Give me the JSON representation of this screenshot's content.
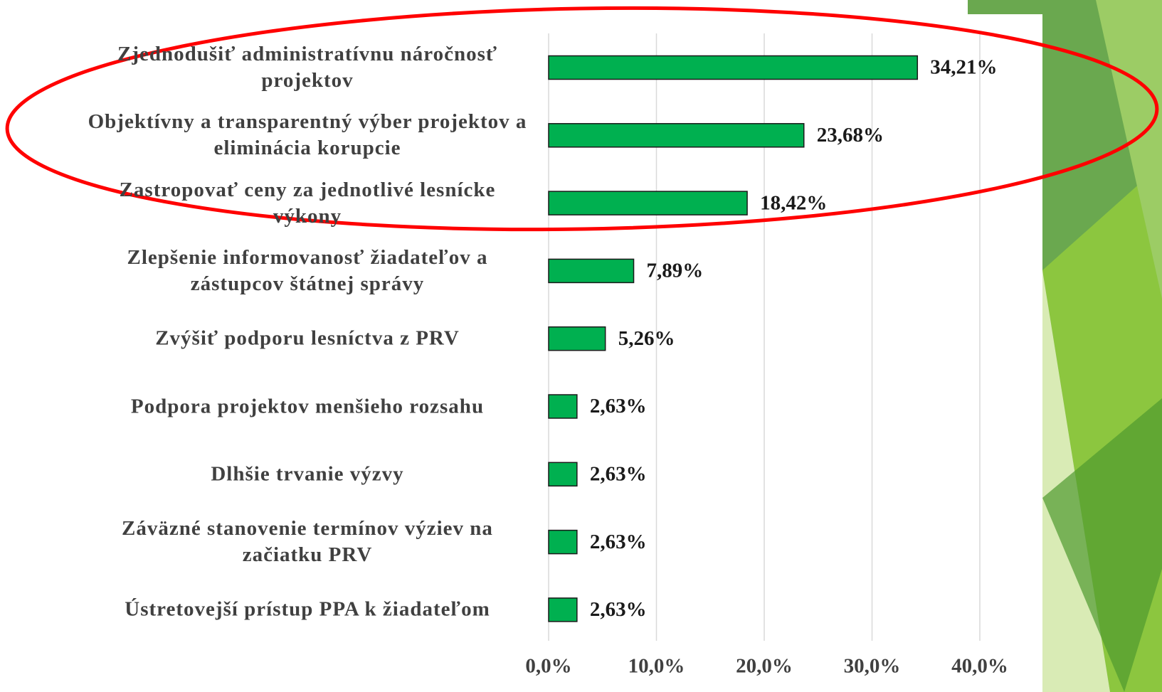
{
  "chart_data": {
    "type": "bar",
    "orientation": "horizontal",
    "categories": [
      "Zjednodušiť administratívnu náročnosť projektov",
      "Objektívny a transparentný výber projektov a eliminácia korupcie",
      "Zastropovať ceny za jednotlivé lesnícke výkony",
      "Zlepšenie informovanosť žiadateľov a zástupcov štátnej správy",
      "Zvýšiť podporu lesníctva z PRV",
      "Podpora projektov menšieho rozsahu",
      "Dlhšie trvanie výzvy",
      "Záväzné stanovenie termínov výziev na začiatku PRV",
      "Ústretovejší prístup PPA k žiadateľom"
    ],
    "values": [
      34.21,
      23.68,
      18.42,
      7.89,
      5.26,
      2.63,
      2.63,
      2.63,
      2.63
    ],
    "value_labels": [
      "34,21%",
      "23,68%",
      "18,42%",
      "7,89%",
      "5,26%",
      "2,63%",
      "2,63%",
      "2,63%",
      "2,63%"
    ],
    "color": "#00b050",
    "xlim": [
      0,
      40
    ],
    "xticks": [
      {
        "value": 0,
        "label": "0,0%"
      },
      {
        "value": 10,
        "label": "10,0%"
      },
      {
        "value": 20,
        "label": "20,0%"
      },
      {
        "value": 30,
        "label": "30,0%"
      },
      {
        "value": 40,
        "label": "40,0%"
      }
    ],
    "grid": true
  }
}
